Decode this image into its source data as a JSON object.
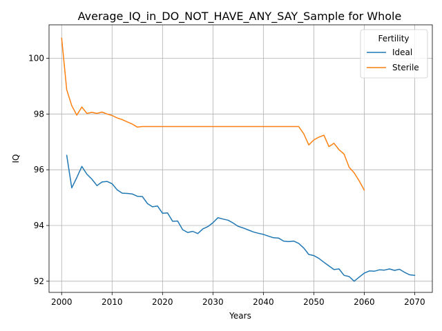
{
  "chart_data": {
    "type": "line",
    "title": "Average_IQ_in_DO_NOT_HAVE_ANY_SAY_Sample for Whole",
    "xlabel": "Years",
    "ylabel": "IQ",
    "xlim": [
      1997.5,
      2073.5
    ],
    "ylim": [
      91.6,
      101.2
    ],
    "xticks": [
      2000,
      2010,
      2020,
      2030,
      2040,
      2050,
      2060,
      2070
    ],
    "yticks": [
      92,
      94,
      96,
      98,
      100
    ],
    "grid": true,
    "legend": {
      "title": "Fertility",
      "placement": "top-right"
    },
    "series": [
      {
        "name": "Ideal",
        "color": "#1f77b4",
        "x": [
          2001,
          2002,
          2003,
          2004,
          2005,
          2006,
          2007,
          2008,
          2009,
          2010,
          2011,
          2012,
          2013,
          2014,
          2015,
          2016,
          2017,
          2018,
          2019,
          2020,
          2021,
          2022,
          2023,
          2024,
          2025,
          2026,
          2027,
          2028,
          2029,
          2030,
          2031,
          2032,
          2033,
          2034,
          2035,
          2036,
          2037,
          2038,
          2039,
          2040,
          2041,
          2042,
          2043,
          2044,
          2045,
          2046,
          2047,
          2048,
          2049,
          2050,
          2051,
          2052,
          2053,
          2054,
          2055,
          2056,
          2057,
          2058,
          2059,
          2060,
          2061,
          2062,
          2063,
          2064,
          2065,
          2066,
          2067,
          2068,
          2069,
          2070
        ],
        "values": [
          96.52,
          95.35,
          95.72,
          96.12,
          95.84,
          95.66,
          95.43,
          95.56,
          95.58,
          95.5,
          95.28,
          95.16,
          95.15,
          95.13,
          95.05,
          95.04,
          94.79,
          94.67,
          94.7,
          94.44,
          94.45,
          94.15,
          94.16,
          93.85,
          93.75,
          93.79,
          93.71,
          93.88,
          93.96,
          94.1,
          94.28,
          94.23,
          94.19,
          94.09,
          93.97,
          93.91,
          93.84,
          93.77,
          93.72,
          93.68,
          93.62,
          93.56,
          93.55,
          93.44,
          93.42,
          93.44,
          93.36,
          93.19,
          92.96,
          92.92,
          92.82,
          92.68,
          92.55,
          92.42,
          92.44,
          92.21,
          92.17,
          92.0,
          92.15,
          92.29,
          92.37,
          92.36,
          92.41,
          92.4,
          92.44,
          92.39,
          92.43,
          92.32,
          92.23,
          92.21
        ]
      },
      {
        "name": "Sterile",
        "color": "#ff7f0e",
        "x": [
          2000,
          2001,
          2002,
          2003,
          2004,
          2005,
          2006,
          2007,
          2008,
          2009,
          2010,
          2011,
          2012,
          2013,
          2014,
          2015,
          2016,
          2017,
          2018,
          2019,
          2020,
          2021,
          2022,
          2023,
          2024,
          2025,
          2026,
          2027,
          2028,
          2029,
          2030,
          2031,
          2032,
          2033,
          2034,
          2035,
          2036,
          2037,
          2038,
          2039,
          2040,
          2041,
          2042,
          2043,
          2044,
          2045,
          2046,
          2047,
          2048,
          2049,
          2050,
          2051,
          2052,
          2053,
          2054,
          2055,
          2056,
          2057,
          2058,
          2059,
          2060
        ],
        "values": [
          100.72,
          98.87,
          98.3,
          97.96,
          98.25,
          98.02,
          98.06,
          98.02,
          98.07,
          98.0,
          97.95,
          97.86,
          97.8,
          97.72,
          97.64,
          97.53,
          97.55,
          97.55,
          97.55,
          97.55,
          97.55,
          97.55,
          97.55,
          97.55,
          97.55,
          97.55,
          97.55,
          97.55,
          97.55,
          97.55,
          97.55,
          97.55,
          97.55,
          97.55,
          97.55,
          97.55,
          97.55,
          97.55,
          97.55,
          97.55,
          97.55,
          97.55,
          97.55,
          97.55,
          97.55,
          97.55,
          97.55,
          97.55,
          97.29,
          96.89,
          97.07,
          97.17,
          97.24,
          96.83,
          96.95,
          96.72,
          96.56,
          96.09,
          95.89,
          95.6,
          95.27
        ]
      }
    ]
  }
}
